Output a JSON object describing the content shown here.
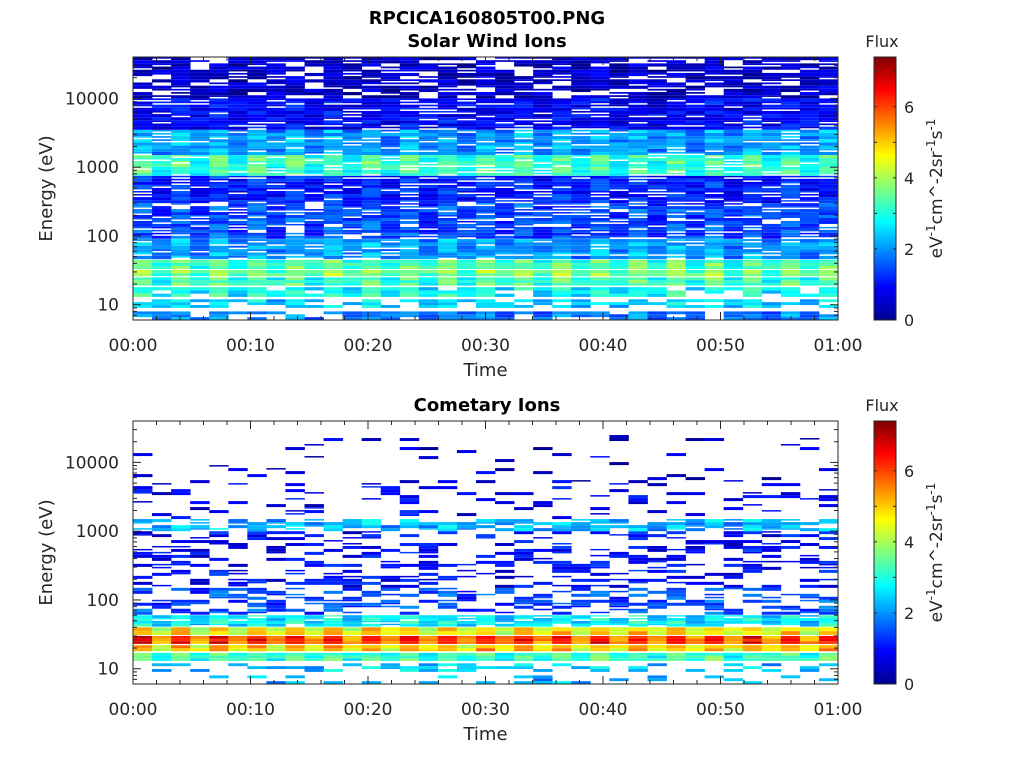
{
  "page_title": "RPCICA160805T00.PNG",
  "chart_data": [
    {
      "type": "heatmap",
      "title": "Solar Wind Ions",
      "xlabel": "Time",
      "ylabel": "Energy (eV)",
      "x_ticks": [
        "00:00",
        "00:10",
        "00:20",
        "00:30",
        "00:40",
        "00:50",
        "01:00"
      ],
      "x_range_minutes": [
        0,
        60
      ],
      "y_scale": "log",
      "y_ticks": [
        "10",
        "100",
        "1000",
        "10000"
      ],
      "y_range": [
        6,
        40000
      ],
      "colorbar": {
        "label": "Flux",
        "units": "eV^-1cm^-2sr^-1s^-1",
        "ticks": [
          "0",
          "2",
          "4",
          "6"
        ],
        "range": [
          0,
          7.4
        ]
      },
      "bands": [
        {
          "energy_range": [
            6,
            8
          ],
          "level": 1.8,
          "coverage": 0.75
        },
        {
          "energy_range": [
            9,
            12
          ],
          "level": 2.4,
          "coverage": 0.7
        },
        {
          "energy_range": [
            13,
            18
          ],
          "level": 2.8,
          "coverage": 0.85
        },
        {
          "energy_range": [
            19,
            25
          ],
          "level": 3.1,
          "coverage": 1.0
        },
        {
          "energy_range": [
            26,
            32
          ],
          "level": 3.5,
          "coverage": 1.0
        },
        {
          "energy_range": [
            33,
            45
          ],
          "level": 3.2,
          "coverage": 1.0
        },
        {
          "energy_range": [
            46,
            90
          ],
          "level": 2.0,
          "coverage": 1.0
        },
        {
          "energy_range": [
            91,
            300
          ],
          "level": 1.4,
          "coverage": 0.95
        },
        {
          "energy_range": [
            300,
            750
          ],
          "level": 1.1,
          "coverage": 1.0
        },
        {
          "energy_range": [
            750,
            1500
          ],
          "level": 3.1,
          "coverage": 1.0
        },
        {
          "energy_range": [
            1500,
            3500
          ],
          "level": 2.0,
          "coverage": 1.0
        },
        {
          "energy_range": [
            3500,
            10000
          ],
          "level": 0.9,
          "coverage": 1.0
        },
        {
          "energy_range": [
            10000,
            40000
          ],
          "level": 0.5,
          "coverage": 0.85
        }
      ]
    },
    {
      "type": "heatmap",
      "title": "Cometary Ions",
      "xlabel": "Time",
      "ylabel": "Energy (eV)",
      "x_ticks": [
        "00:00",
        "00:10",
        "00:20",
        "00:30",
        "00:40",
        "00:50",
        "01:00"
      ],
      "x_range_minutes": [
        0,
        60
      ],
      "y_scale": "log",
      "y_ticks": [
        "10",
        "100",
        "1000",
        "10000"
      ],
      "y_range": [
        6,
        40000
      ],
      "colorbar": {
        "label": "Flux",
        "units": "eV^-1cm^-2sr^-1s^-1",
        "ticks": [
          "0",
          "2",
          "4",
          "6"
        ],
        "range": [
          0,
          7.4
        ]
      },
      "bands": [
        {
          "energy_range": [
            6,
            8
          ],
          "level": 2.2,
          "coverage": 0.2
        },
        {
          "energy_range": [
            9,
            12
          ],
          "level": 2.3,
          "coverage": 0.4
        },
        {
          "energy_range": [
            13,
            17
          ],
          "level": 3.1,
          "coverage": 1.0
        },
        {
          "energy_range": [
            18,
            22
          ],
          "level": 4.8,
          "coverage": 1.0
        },
        {
          "energy_range": [
            23,
            30
          ],
          "level": 5.8,
          "coverage": 1.0
        },
        {
          "energy_range": [
            31,
            40
          ],
          "level": 4.5,
          "coverage": 1.0
        },
        {
          "energy_range": [
            41,
            60
          ],
          "level": 2.6,
          "coverage": 0.95
        },
        {
          "energy_range": [
            61,
            150
          ],
          "level": 1.4,
          "coverage": 0.55
        },
        {
          "energy_range": [
            150,
            500
          ],
          "level": 0.9,
          "coverage": 0.4
        },
        {
          "energy_range": [
            500,
            1000
          ],
          "level": 0.9,
          "coverage": 0.35
        },
        {
          "energy_range": [
            1000,
            1500
          ],
          "level": 2.2,
          "coverage": 0.7
        },
        {
          "energy_range": [
            1500,
            5000
          ],
          "level": 0.8,
          "coverage": 0.2
        },
        {
          "energy_range": [
            5000,
            25000
          ],
          "level": 0.6,
          "coverage": 0.1
        }
      ]
    }
  ]
}
